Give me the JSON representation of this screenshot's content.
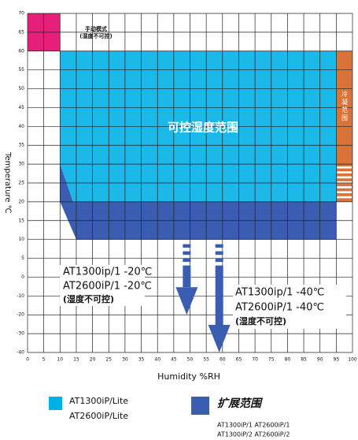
{
  "chart_data": {
    "type": "region",
    "xlabel": "Humidity %RH",
    "ylabel": "Temperature ℃",
    "xlim": [
      0,
      100
    ],
    "ylim": [
      -40,
      70
    ],
    "xticks": [
      0,
      5,
      10,
      15,
      20,
      25,
      30,
      35,
      40,
      45,
      50,
      55,
      60,
      65,
      70,
      75,
      80,
      85,
      90,
      95,
      100
    ],
    "yticks": [
      -40,
      -30,
      -20,
      -10,
      0,
      5,
      10,
      15,
      20,
      25,
      30,
      35,
      40,
      45,
      50,
      55,
      60,
      65,
      70
    ],
    "grid": true,
    "regions": [
      {
        "color": "#e6207a",
        "x": [
          0,
          10,
          10,
          0
        ],
        "y": [
          70,
          70,
          60,
          60
        ]
      },
      {
        "color": "#1bb8ea",
        "x": [
          10,
          95,
          95,
          14,
          10
        ],
        "y": [
          60,
          60,
          20,
          20,
          30
        ]
      },
      {
        "color": "#3a5db2",
        "x": [
          10,
          14,
          95,
          95,
          15,
          10
        ],
        "y": [
          30,
          20,
          20,
          10,
          10,
          20
        ]
      },
      {
        "color": "#d9733a",
        "x": [
          95,
          100,
          100,
          95
        ],
        "y": [
          60,
          60,
          20,
          20
        ]
      }
    ],
    "arrows": [
      {
        "color": "#3a5db2",
        "x": 49,
        "y": [
          10,
          -20
        ]
      },
      {
        "color": "#3a5db2",
        "x": 59,
        "y": [
          10,
          -40
        ]
      }
    ],
    "annotations": [
      "手动模式",
      "(湿度不可控)",
      "可控湿度范围",
      "冷凝范围",
      "AT1300ip/1 -20℃",
      "AT2600iP/1 -20℃",
      "(湿度不可控)",
      "AT1300ip/1 -40℃",
      "AT2600iP/1 -40℃",
      "(湿度不可控)"
    ],
    "legend": [
      {
        "color": "#00b0e8",
        "labels": [
          "AT1300iP/Lite",
          "AT2600iP/Lite"
        ]
      },
      {
        "color": "#3a5db2",
        "title": "扩展范围",
        "labels": [
          "AT1300iP/1 AT2600iP/1",
          "AT1300iP/2 AT2600iP/2"
        ]
      }
    ]
  }
}
